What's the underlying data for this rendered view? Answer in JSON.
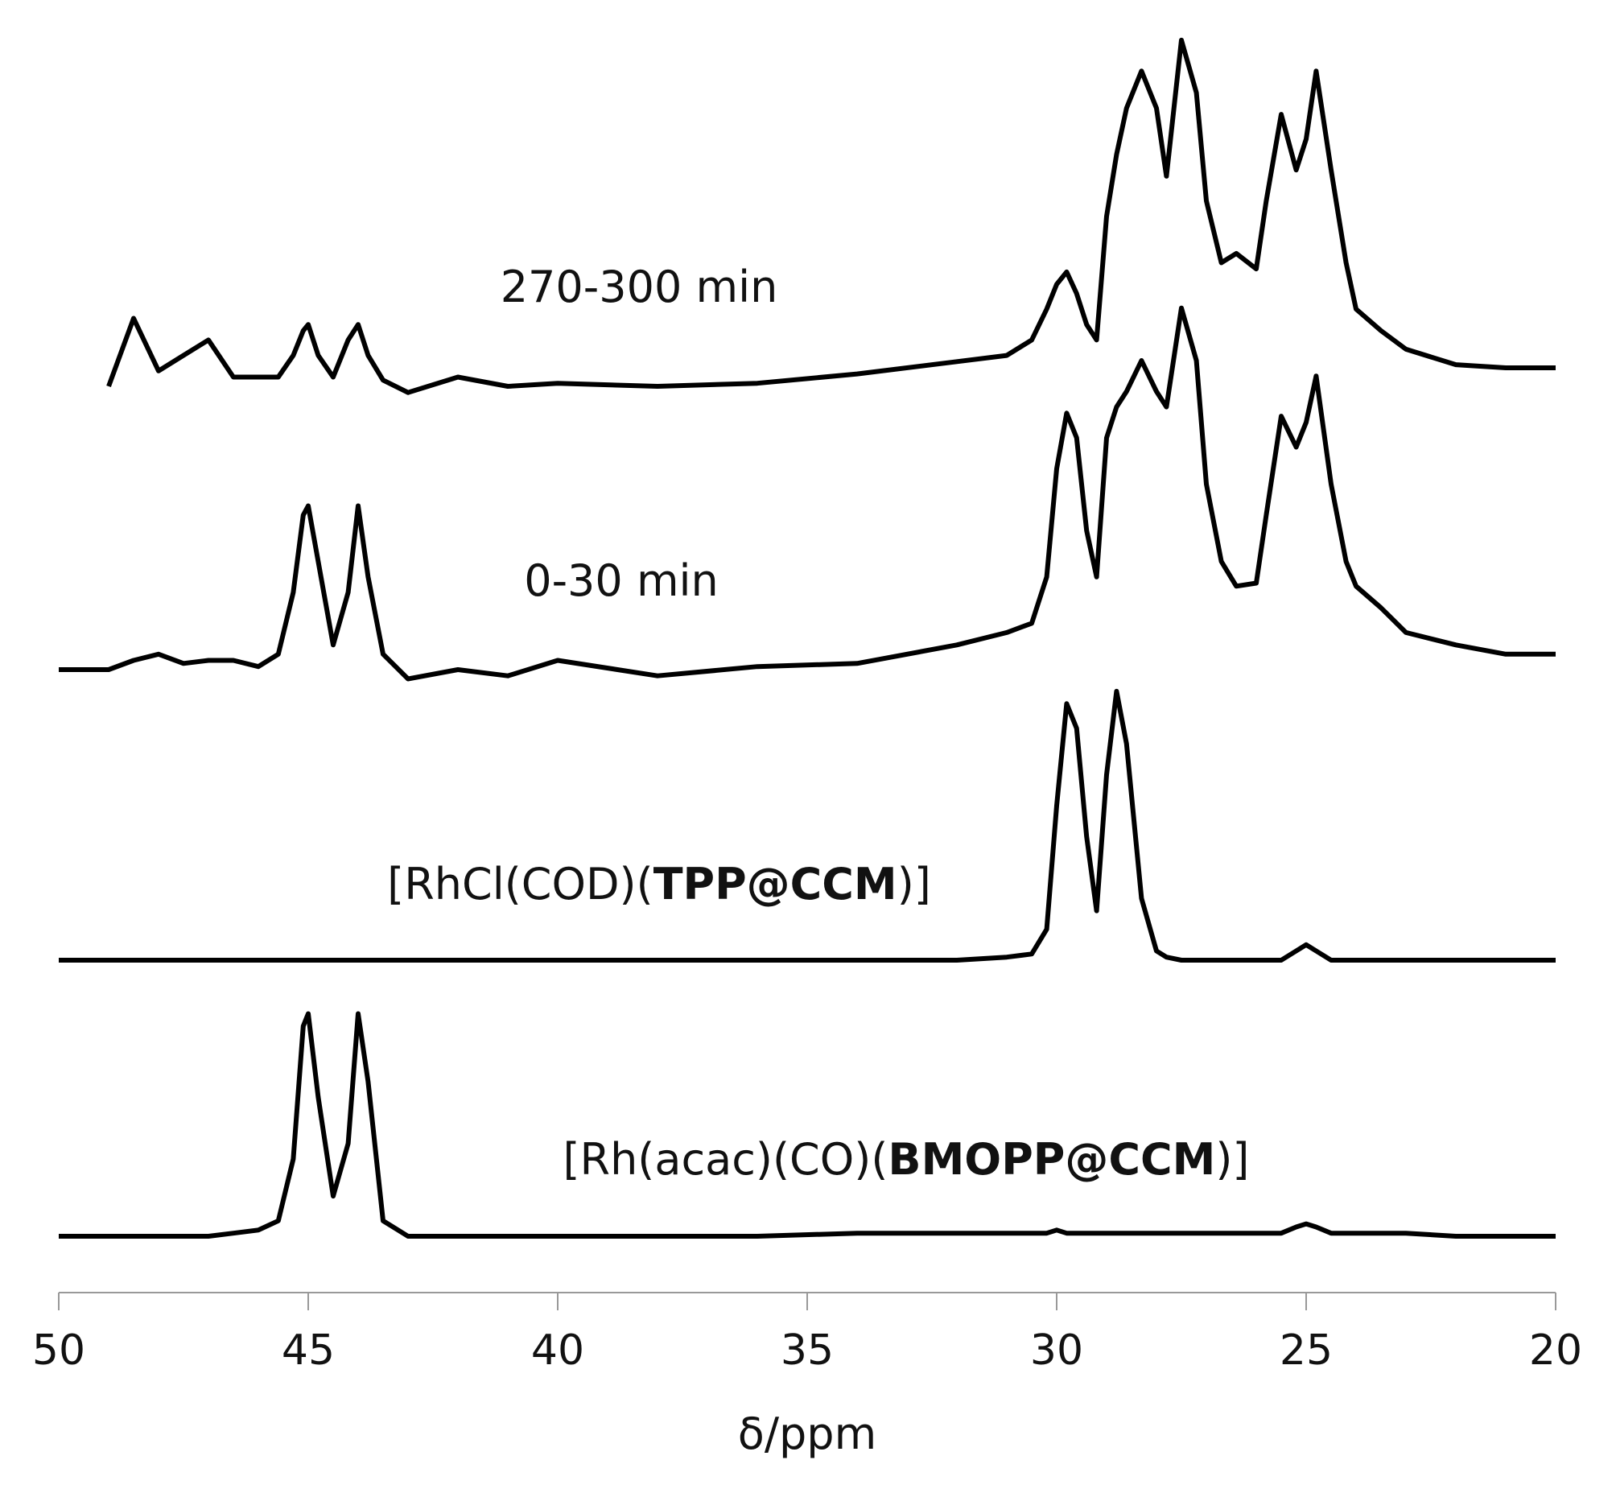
{
  "chart_data": {
    "type": "line",
    "x_label": "δ/ppm",
    "xlim": [
      50,
      20
    ],
    "xticks": [
      50,
      45,
      40,
      35,
      30,
      25,
      20
    ],
    "color": "#000000",
    "x": [
      50,
      49,
      48.5,
      48,
      47.5,
      47,
      46.5,
      46,
      45.6,
      45.3,
      45.1,
      45,
      44.8,
      44.5,
      44.2,
      44,
      43.8,
      43.5,
      43,
      42,
      41,
      40,
      38,
      36,
      34,
      32,
      31,
      30.5,
      30.2,
      30,
      29.8,
      29.6,
      29.4,
      29.2,
      29,
      28.8,
      28.6,
      28.3,
      28,
      27.8,
      27.5,
      27.2,
      27,
      26.7,
      26.4,
      26,
      25.8,
      25.5,
      25.2,
      25,
      24.8,
      24.5,
      24.2,
      24,
      23.5,
      23,
      22,
      21,
      20
    ],
    "series": [
      {
        "name_parts": [
          "270-300 min"
        ],
        "bold_part": null,
        "values": [
          null,
          0,
          22,
          5,
          10,
          15,
          3,
          3,
          3,
          10,
          18,
          20,
          10,
          3,
          15,
          20,
          10,
          2,
          -2,
          3,
          0,
          1,
          0,
          1,
          4,
          8,
          10,
          15,
          25,
          33,
          37,
          30,
          20,
          15,
          55,
          75,
          90,
          102,
          90,
          68,
          112,
          95,
          60,
          40,
          43,
          38,
          60,
          88,
          70,
          80,
          102,
          70,
          40,
          25,
          18,
          12,
          7,
          6,
          6
        ]
      },
      {
        "name_parts": [
          "0-30 min"
        ],
        "bold_part": null,
        "values": [
          0,
          0,
          3,
          5,
          2,
          3,
          3,
          1,
          5,
          25,
          50,
          53,
          35,
          8,
          25,
          53,
          30,
          5,
          -3,
          0,
          -2,
          3,
          -2,
          1,
          2,
          8,
          12,
          15,
          30,
          65,
          83,
          75,
          45,
          30,
          75,
          85,
          90,
          100,
          90,
          85,
          117,
          100,
          60,
          35,
          27,
          28,
          50,
          82,
          72,
          80,
          95,
          60,
          35,
          27,
          20,
          12,
          8,
          5,
          5
        ]
      },
      {
        "name_parts": [
          "[RhCl(COD)(",
          "TPP@CCM",
          ")]"
        ],
        "bold_part": 1,
        "values": [
          0,
          0,
          0,
          0,
          0,
          0,
          0,
          0,
          0,
          0,
          0,
          0,
          0,
          0,
          0,
          0,
          0,
          0,
          0,
          0,
          0,
          0,
          0,
          0,
          0,
          0,
          1,
          2,
          10,
          50,
          83,
          75,
          40,
          16,
          60,
          87,
          70,
          20,
          3,
          1,
          0,
          0,
          0,
          0,
          0,
          0,
          0,
          0,
          3,
          5,
          3,
          0,
          0,
          0,
          0,
          0,
          0,
          0,
          0
        ]
      },
      {
        "name_parts": [
          "[Rh(acac)(CO)(",
          "BMOPP@CCM",
          ")]"
        ],
        "bold_part": 1,
        "values": [
          0,
          0,
          0,
          0,
          0,
          0,
          1,
          2,
          5,
          25,
          68,
          72,
          45,
          13,
          30,
          72,
          50,
          5,
          0,
          0,
          0,
          0,
          0,
          0,
          1,
          1,
          1,
          1,
          1,
          2,
          1,
          1,
          1,
          1,
          1,
          1,
          1,
          1,
          1,
          1,
          1,
          1,
          1,
          1,
          1,
          1,
          1,
          1,
          3,
          4,
          3,
          1,
          1,
          1,
          1,
          1,
          0,
          0,
          0
        ]
      }
    ]
  }
}
